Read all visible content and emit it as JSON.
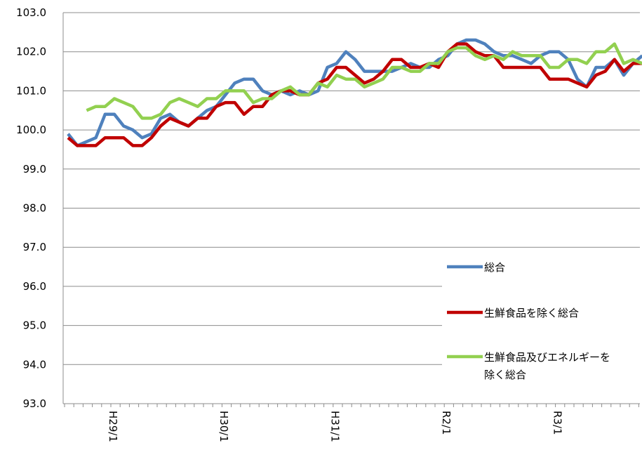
{
  "chart_data": {
    "type": "line",
    "grid": true,
    "legend_position": "right",
    "ylim": [
      93.0,
      103.0
    ],
    "yticks": [
      "93.0",
      "94.0",
      "95.0",
      "96.0",
      "97.0",
      "98.0",
      "99.0",
      "100.0",
      "101.0",
      "102.0",
      "103.0"
    ],
    "x_start": "H28/9",
    "xtick_labels": [
      "H29/1",
      "H30/1",
      "H31/1",
      "R2/1",
      "R3/1"
    ],
    "series": [
      {
        "name": "総合",
        "color": "#4F81BD",
        "values": [
          99.9,
          99.6,
          99.7,
          99.8,
          100.4,
          100.4,
          100.1,
          100.0,
          99.8,
          99.9,
          100.3,
          100.4,
          100.2,
          100.1,
          100.3,
          100.5,
          100.6,
          100.9,
          101.2,
          101.3,
          101.3,
          101.0,
          100.9,
          101.0,
          100.9,
          101.0,
          100.9,
          101.0,
          101.6,
          101.7,
          102.0,
          101.8,
          101.5,
          101.5,
          101.5,
          101.5,
          101.6,
          101.7,
          101.6,
          101.6,
          101.8,
          101.9,
          102.2,
          102.3,
          102.3,
          102.2,
          102.0,
          101.9,
          101.9,
          101.8,
          101.7,
          101.9,
          102.0,
          102.0,
          101.8,
          101.3,
          101.1,
          101.6,
          101.6,
          101.8,
          101.4,
          101.7,
          101.9
        ]
      },
      {
        "name": "生鮮食品を除く総合",
        "color": "#C00000",
        "values": [
          99.8,
          99.6,
          99.6,
          99.6,
          99.8,
          99.8,
          99.8,
          99.6,
          99.6,
          99.8,
          100.1,
          100.3,
          100.2,
          100.1,
          100.3,
          100.3,
          100.6,
          100.7,
          100.7,
          100.4,
          100.6,
          100.6,
          100.9,
          101.0,
          101.0,
          100.9,
          100.9,
          101.2,
          101.3,
          101.6,
          101.6,
          101.4,
          101.2,
          101.3,
          101.5,
          101.8,
          101.8,
          101.6,
          101.6,
          101.7,
          101.6,
          102.0,
          102.2,
          102.2,
          102.0,
          101.9,
          101.9,
          101.6,
          101.6,
          101.6,
          101.6,
          101.6,
          101.3,
          101.3,
          101.3,
          101.2,
          101.1,
          101.4,
          101.5,
          101.8,
          101.5,
          101.7,
          101.7
        ]
      },
      {
        "name": "生鮮食品及びエネルギーを除く総合",
        "color": "#92D050",
        "values": [
          null,
          null,
          100.5,
          100.6,
          100.6,
          100.8,
          100.7,
          100.6,
          100.3,
          100.3,
          100.4,
          100.7,
          100.8,
          100.7,
          100.6,
          100.8,
          100.8,
          101.0,
          101.0,
          101.0,
          100.7,
          100.8,
          100.8,
          101.0,
          101.1,
          100.9,
          100.9,
          101.2,
          101.1,
          101.4,
          101.3,
          101.3,
          101.1,
          101.2,
          101.3,
          101.6,
          101.6,
          101.5,
          101.5,
          101.7,
          101.7,
          102.0,
          102.1,
          102.1,
          101.9,
          101.8,
          101.9,
          101.8,
          102.0,
          101.9,
          101.9,
          101.9,
          101.6,
          101.6,
          101.8,
          101.8,
          101.7,
          102.0,
          102.0,
          102.2,
          101.7,
          101.8,
          101.7
        ]
      }
    ],
    "legend": [
      {
        "lines": [
          "総合"
        ]
      },
      {
        "lines": [
          "生鮮食品を除く総合"
        ]
      },
      {
        "lines": [
          "生鮮食品及びエネルギーを",
          "除く総合"
        ]
      }
    ]
  }
}
